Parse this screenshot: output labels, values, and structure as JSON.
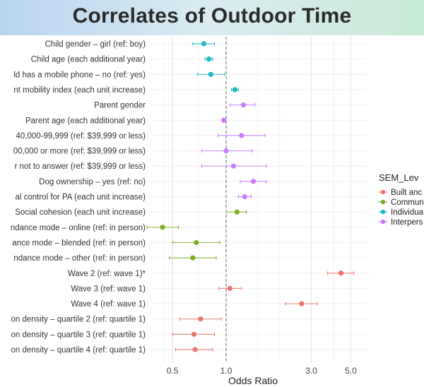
{
  "title": "Correlates of Outdoor Time",
  "chart_data": {
    "type": "scatter",
    "subtype": "forest-plot",
    "title": "Correlates of Outdoor Time",
    "xlabel": "Odds Ratio",
    "ylabel": "",
    "x_scale": "log",
    "xlim": [
      0.38,
      6.2
    ],
    "x_ticks": [
      0.5,
      1.0,
      3.0,
      5.0
    ],
    "x_tick_labels": [
      "0.5",
      "1.0",
      "3.0",
      "5.0"
    ],
    "reference_line": 1.0,
    "grid": true,
    "legend_title": "SEM_Lev",
    "legend_position": "right",
    "legend": [
      {
        "name": "Built anc",
        "color": "#E8766D"
      },
      {
        "name": "Commun",
        "color": "#7CAE26"
      },
      {
        "name": "Individua",
        "color": "#1FB9C3"
      },
      {
        "name": "Interpers",
        "color": "#C77CFF"
      }
    ],
    "rows": [
      {
        "label": "Child gender – girl (ref: boy)",
        "or": 0.75,
        "lo": 0.65,
        "hi": 0.86,
        "level": "Individua"
      },
      {
        "label": "Child age (each additional year)",
        "or": 0.8,
        "lo": 0.76,
        "hi": 0.84,
        "level": "Individua"
      },
      {
        "label": "ld has a mobile phone – no (ref: yes)",
        "or": 0.82,
        "lo": 0.69,
        "hi": 0.98,
        "level": "Individua"
      },
      {
        "label": "nt mobility index (each unit increase)",
        "or": 1.12,
        "lo": 1.07,
        "hi": 1.17,
        "level": "Individua"
      },
      {
        "label": "Parent gender",
        "or": 1.25,
        "lo": 1.05,
        "hi": 1.45,
        "level": "Interpers"
      },
      {
        "label": "Parent age (each additional year)",
        "or": 0.97,
        "lo": 0.95,
        "hi": 0.99,
        "level": "Interpers"
      },
      {
        "label": "40,000-99,999 (ref: $39,999 or less)",
        "or": 1.22,
        "lo": 0.9,
        "hi": 1.65,
        "level": "Interpers"
      },
      {
        "label": "00,000 or more (ref: $39,999 or less)",
        "or": 1.0,
        "lo": 0.73,
        "hi": 1.4,
        "level": "Interpers"
      },
      {
        "label": "r not to answer (ref: $39,999 or less)",
        "or": 1.1,
        "lo": 0.73,
        "hi": 1.68,
        "level": "Interpers"
      },
      {
        "label": "Dog ownership – yes (ref: no)",
        "or": 1.42,
        "lo": 1.2,
        "hi": 1.68,
        "level": "Interpers"
      },
      {
        "label": "al control for PA (each unit increase)",
        "or": 1.27,
        "lo": 1.17,
        "hi": 1.38,
        "level": "Interpers"
      },
      {
        "label": "Social cohesion (each unit increase)",
        "or": 1.15,
        "lo": 1.0,
        "hi": 1.3,
        "level": "Commun"
      },
      {
        "label": "ndance mode – online (ref: in person)",
        "or": 0.44,
        "lo": 0.36,
        "hi": 0.54,
        "level": "Commun"
      },
      {
        "label": "ance mode – blended (ref: in person)",
        "or": 0.68,
        "lo": 0.5,
        "hi": 0.92,
        "level": "Commun"
      },
      {
        "label": "ndance mode – other (ref: in person)",
        "or": 0.65,
        "lo": 0.48,
        "hi": 0.88,
        "level": "Commun"
      },
      {
        "label": "Wave 2 (ref: wave 1)*",
        "or": 4.4,
        "lo": 3.7,
        "hi": 5.2,
        "level": "Built anc"
      },
      {
        "label": "Wave 3 (ref: wave 1)",
        "or": 1.05,
        "lo": 0.91,
        "hi": 1.22,
        "level": "Built anc"
      },
      {
        "label": "Wave 4 (ref: wave 1)",
        "or": 2.65,
        "lo": 2.15,
        "hi": 3.25,
        "level": "Built anc"
      },
      {
        "label": "on density – quartile 2 (ref: quartile 1)",
        "or": 0.72,
        "lo": 0.55,
        "hi": 0.94,
        "level": "Built anc"
      },
      {
        "label": "on density – quartile 3 (ref: quartile 1)",
        "or": 0.66,
        "lo": 0.5,
        "hi": 0.86,
        "level": "Built anc"
      },
      {
        "label": "on density – quartile 4 (ref: quartile 1)",
        "or": 0.67,
        "lo": 0.52,
        "hi": 0.84,
        "level": "Built anc"
      }
    ]
  }
}
